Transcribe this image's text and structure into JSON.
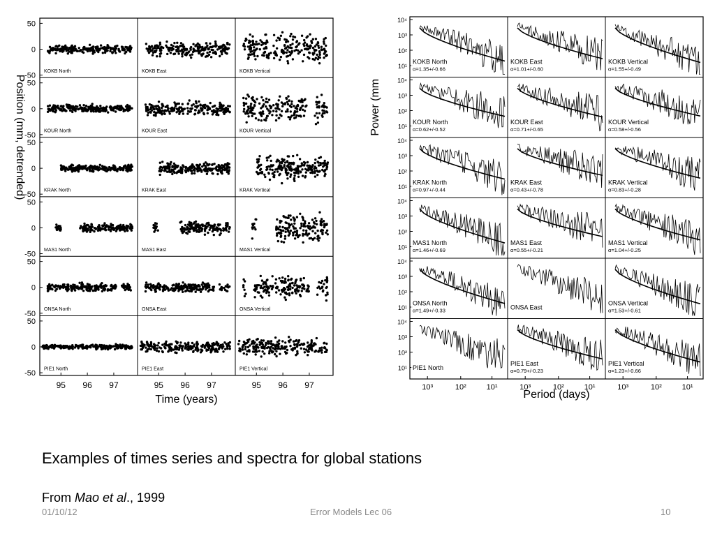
{
  "slide": {
    "caption": "Examples of times series and spectra for global stations",
    "source_prefix": "From ",
    "source_author": "Mao et al",
    "source_suffix": "., 1999",
    "footer_date": "01/10/12",
    "footer_title": "Error Models Lec 06",
    "footer_page": "10"
  },
  "chart_data": [
    {
      "type": "scatter",
      "ylabel": "Position (mm, detrended)",
      "xlabel": "Time (years)",
      "ylim": [
        -55,
        60
      ],
      "yticks": [
        "50",
        "0",
        "-50"
      ],
      "xticks": [
        "95",
        "96",
        "97"
      ],
      "rows": [
        "KOKB",
        "KOUR",
        "KRAK",
        "MAS1",
        "ONSA",
        "PIE1"
      ],
      "columns": [
        "North",
        "East",
        "Vertical"
      ],
      "panels": [
        {
          "label": "KOKB North",
          "spread": 5,
          "t_start": 94.5,
          "gaps": []
        },
        {
          "label": "KOKB East",
          "spread": 9,
          "t_start": 94.5,
          "gaps": []
        },
        {
          "label": "KOKB Vertical",
          "spread": 18,
          "t_start": 94.5,
          "gaps": []
        },
        {
          "label": "KOUR North",
          "spread": 5,
          "t_start": 94.5,
          "gaps": []
        },
        {
          "label": "KOUR East",
          "spread": 9,
          "t_start": 94.5,
          "gaps": []
        },
        {
          "label": "KOUR Vertical",
          "spread": 18,
          "t_start": 94.5,
          "gaps": [
            [
              96.9,
              97.2
            ]
          ]
        },
        {
          "label": "KRAK North",
          "spread": 4,
          "t_start": 95.0,
          "gaps": []
        },
        {
          "label": "KRAK East",
          "spread": 7,
          "t_start": 95.0,
          "gaps": []
        },
        {
          "label": "KRAK Vertical",
          "spread": 15,
          "t_start": 95.0,
          "gaps": []
        },
        {
          "label": "MAS1 North",
          "spread": 5,
          "t_start": 94.8,
          "gaps": [
            [
              95.0,
              95.7
            ]
          ]
        },
        {
          "label": "MAS1 East",
          "spread": 8,
          "t_start": 94.8,
          "gaps": [
            [
              95.0,
              95.8
            ]
          ]
        },
        {
          "label": "MAS1 Vertical",
          "spread": 18,
          "t_start": 94.8,
          "gaps": [
            [
              95.0,
              95.7
            ]
          ]
        },
        {
          "label": "ONSA North",
          "spread": 5,
          "t_start": 94.5,
          "gaps": [
            [
              97.1,
              97.3
            ]
          ]
        },
        {
          "label": "ONSA East",
          "spread": 6,
          "t_start": 94.5,
          "gaps": [
            [
              97.1,
              97.3
            ]
          ]
        },
        {
          "label": "ONSA Vertical",
          "spread": 14,
          "t_start": 94.5,
          "gaps": [
            [
              94.6,
              94.9
            ],
            [
              97.0,
              97.3
            ]
          ]
        },
        {
          "label": "PIE1 North",
          "spread": 3,
          "t_start": 94.3,
          "gaps": []
        },
        {
          "label": "PIE1 East",
          "spread": 7,
          "t_start": 94.3,
          "gaps": []
        },
        {
          "label": "PIE1 Vertical",
          "spread": 11,
          "t_start": 94.3,
          "gaps": []
        }
      ]
    },
    {
      "type": "line",
      "ylabel": "Power (mm",
      "xlabel": "Period (days)",
      "x_scale": "log",
      "y_scale": "log",
      "xticks": [
        "10³",
        "10²",
        "10¹"
      ],
      "yticks": [
        "10⁴",
        "10³",
        "10²",
        "10¹"
      ],
      "columns": [
        "North",
        "East",
        "Vertical"
      ],
      "panels": [
        {
          "label": "KOKB North",
          "fit": "α=1.35+/-0.66"
        },
        {
          "label": "KOKB East",
          "fit": "α=1.01+/-0.60"
        },
        {
          "label": "KOKB Vertical",
          "fit": "α=1.55+/-0.49"
        },
        {
          "label": "KOUR North",
          "fit": "α=0.62+/-0.52"
        },
        {
          "label": "KOUR East",
          "fit": "α=0.71+/-0.65"
        },
        {
          "label": "KOUR Vertical",
          "fit": "α=0.58+/-0.56"
        },
        {
          "label": "KRAK North",
          "fit": "α=0.97+/-0.44"
        },
        {
          "label": "KRAK East",
          "fit": "α=0.43+/-0.78"
        },
        {
          "label": "KRAK Vertical",
          "fit": "α=0.83+/-0.28"
        },
        {
          "label": "MAS1 North",
          "fit": "α=1.46+/-0.69"
        },
        {
          "label": "MAS1 East",
          "fit": "α=0.55+/-0.21"
        },
        {
          "label": "MAS1 Vertical",
          "fit": "α=1.04+/-0.25"
        },
        {
          "label": "ONSA North",
          "fit": "α=1.49+/-0.33"
        },
        {
          "label": "ONSA East",
          "fit": ""
        },
        {
          "label": "ONSA Vertical",
          "fit": "α=1.53+/-0.61"
        },
        {
          "label": "PIE1 North",
          "fit": ""
        },
        {
          "label": "PIE1 East",
          "fit": "α=0.79+/-0.23"
        },
        {
          "label": "PIE1 Vertical",
          "fit": "α=1.23+/-0.66"
        }
      ]
    }
  ]
}
